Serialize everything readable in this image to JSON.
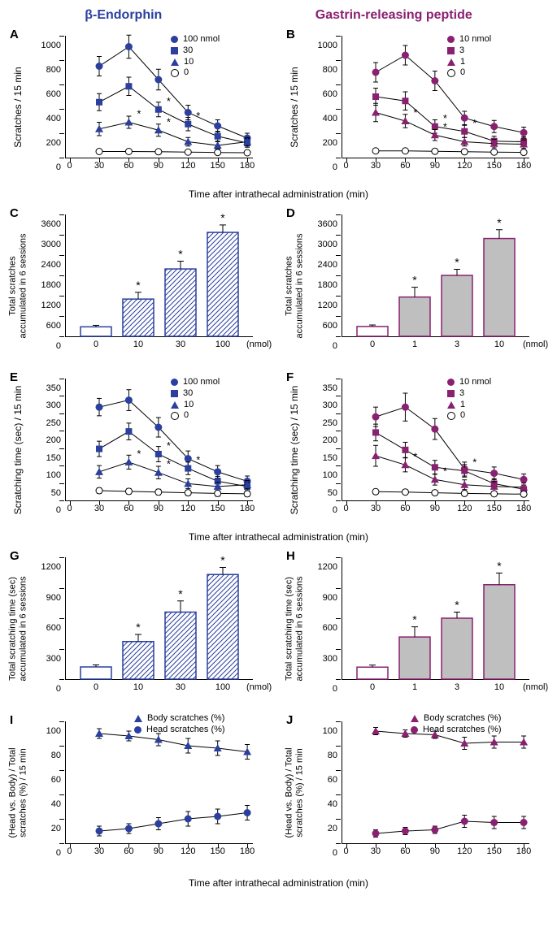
{
  "colors": {
    "blue": "#2a3f9e",
    "purple": "#8a2070",
    "gray_fill": "#bfbfbf",
    "black": "#000000",
    "white": "#ffffff"
  },
  "headers": {
    "left": "β-Endorphin",
    "right": "Gastrin-releasing peptide"
  },
  "shared_xlabel": "Time after intrathecal administration (min)",
  "time_ticks": [
    0,
    30,
    60,
    90,
    120,
    150,
    180
  ],
  "panelA": {
    "label": "A",
    "ylabel": "Scratches / 15 min",
    "ylim": [
      0,
      1000
    ],
    "ytick_step": 200,
    "color": "#2a3f9e",
    "legend": [
      {
        "marker": "circle",
        "label": "100 nmol"
      },
      {
        "marker": "square",
        "label": "30"
      },
      {
        "marker": "triangle",
        "label": "10"
      },
      {
        "marker": "open",
        "label": "0"
      }
    ],
    "series": [
      {
        "marker": "circle",
        "y": [
          750,
          910,
          640,
          370,
          260,
          160
        ],
        "err": [
          80,
          95,
          85,
          60,
          50,
          40
        ]
      },
      {
        "marker": "square",
        "y": [
          455,
          585,
          395,
          275,
          175,
          120
        ],
        "err": [
          70,
          75,
          60,
          55,
          40,
          35
        ],
        "stars": [
          0,
          0,
          1,
          1,
          0,
          0
        ]
      },
      {
        "marker": "triangle",
        "y": [
          235,
          290,
          225,
          130,
          100,
          130
        ],
        "err": [
          55,
          50,
          50,
          35,
          30,
          35
        ],
        "stars": [
          0,
          1,
          1,
          0,
          0,
          0
        ]
      },
      {
        "marker": "open",
        "y": [
          50,
          50,
          48,
          45,
          42,
          40
        ],
        "err": [
          15,
          15,
          15,
          14,
          14,
          14
        ]
      }
    ]
  },
  "panelB": {
    "label": "B",
    "ylabel": "Scratches / 15 min",
    "ylim": [
      0,
      1000
    ],
    "ytick_step": 200,
    "color": "#8a2070",
    "legend": [
      {
        "marker": "circle",
        "label": "10 nmol"
      },
      {
        "marker": "square",
        "label": "3"
      },
      {
        "marker": "triangle",
        "label": "1"
      },
      {
        "marker": "open",
        "label": "0"
      }
    ],
    "series": [
      {
        "marker": "circle",
        "y": [
          700,
          840,
          630,
          325,
          255,
          205
        ],
        "err": [
          80,
          80,
          80,
          55,
          50,
          45
        ]
      },
      {
        "marker": "square",
        "y": [
          500,
          465,
          255,
          215,
          135,
          130
        ],
        "err": [
          70,
          75,
          55,
          50,
          40,
          40
        ],
        "stars": [
          0,
          0,
          1,
          1,
          0,
          0
        ]
      },
      {
        "marker": "triangle",
        "y": [
          370,
          300,
          185,
          130,
          115,
          110
        ],
        "err": [
          75,
          55,
          45,
          35,
          35,
          35
        ],
        "stars": [
          0,
          1,
          1,
          0,
          0,
          0
        ]
      },
      {
        "marker": "open",
        "y": [
          55,
          55,
          52,
          48,
          45,
          43
        ],
        "err": [
          15,
          15,
          15,
          14,
          14,
          14
        ]
      }
    ]
  },
  "panelC": {
    "label": "C",
    "ylabel": "Total scratches\naccumulated in 6 sessions",
    "ylim": [
      0,
      3600
    ],
    "ytick_step": 600,
    "categories": [
      "0",
      "10",
      "30",
      "100"
    ],
    "unit": "(nmol)",
    "values": [
      280,
      1100,
      1990,
      3070
    ],
    "err": [
      45,
      200,
      230,
      220
    ],
    "stars": [
      0,
      1,
      1,
      1
    ],
    "stroke": "#2a3f9e",
    "pattern": "hatch"
  },
  "panelD": {
    "label": "D",
    "ylabel": "Total scratches\naccumulated in 6 sessions",
    "ylim": [
      0,
      3600
    ],
    "ytick_step": 600,
    "categories": [
      "0",
      "1",
      "3",
      "10"
    ],
    "unit": "(nmol)",
    "values": [
      290,
      1160,
      1800,
      2890
    ],
    "err": [
      45,
      290,
      180,
      260
    ],
    "stars": [
      0,
      1,
      1,
      1
    ],
    "stroke": "#8a2070",
    "pattern": "solid"
  },
  "panelE": {
    "label": "E",
    "ylabel": "Scratching time (sec) / 15 min",
    "ylim": [
      0,
      350
    ],
    "ytick_step": 50,
    "color": "#2a3f9e",
    "legend": [
      {
        "marker": "circle",
        "label": "100 nmol"
      },
      {
        "marker": "square",
        "label": "30"
      },
      {
        "marker": "triangle",
        "label": "10"
      },
      {
        "marker": "open",
        "label": "0"
      }
    ],
    "series": [
      {
        "marker": "circle",
        "y": [
          268,
          288,
          210,
          120,
          82,
          55
        ],
        "err": [
          25,
          30,
          28,
          22,
          18,
          15
        ]
      },
      {
        "marker": "square",
        "y": [
          148,
          198,
          133,
          92,
          55,
          40
        ],
        "err": [
          22,
          24,
          22,
          18,
          14,
          12
        ],
        "stars": [
          0,
          0,
          1,
          1,
          0,
          0
        ]
      },
      {
        "marker": "triangle",
        "y": [
          82,
          110,
          80,
          48,
          40,
          45
        ],
        "err": [
          18,
          20,
          18,
          14,
          12,
          12
        ],
        "stars": [
          0,
          1,
          1,
          0,
          0,
          0
        ]
      },
      {
        "marker": "open",
        "y": [
          28,
          26,
          24,
          22,
          20,
          19
        ],
        "err": [
          8,
          8,
          8,
          8,
          8,
          8
        ]
      }
    ]
  },
  "panelF": {
    "label": "F",
    "ylabel": "Scratching time (sec) / 15 min",
    "ylim": [
      0,
      350
    ],
    "ytick_step": 50,
    "color": "#8a2070",
    "legend": [
      {
        "marker": "circle",
        "label": "10 nmol"
      },
      {
        "marker": "square",
        "label": "3"
      },
      {
        "marker": "triangle",
        "label": "1"
      },
      {
        "marker": "open",
        "label": "0"
      }
    ],
    "series": [
      {
        "marker": "circle",
        "y": [
          240,
          268,
          205,
          90,
          78,
          60
        ],
        "err": [
          28,
          40,
          30,
          20,
          18,
          16
        ]
      },
      {
        "marker": "square",
        "y": [
          195,
          145,
          95,
          85,
          48,
          32
        ],
        "err": [
          24,
          22,
          20,
          18,
          14,
          12
        ],
        "stars": [
          0,
          0,
          0,
          1,
          0,
          0
        ]
      },
      {
        "marker": "triangle",
        "y": [
          128,
          102,
          60,
          45,
          40,
          38
        ],
        "err": [
          30,
          20,
          16,
          14,
          14,
          12
        ],
        "stars": [
          0,
          1,
          1,
          0,
          0,
          0
        ]
      },
      {
        "marker": "open",
        "y": [
          25,
          24,
          22,
          20,
          19,
          18
        ],
        "err": [
          7,
          7,
          7,
          7,
          7,
          7
        ]
      }
    ]
  },
  "panelG": {
    "label": "G",
    "ylabel": "Total scratching time (sec)\naccumulated in 6 sessions",
    "ylim": [
      0,
      1200
    ],
    "ytick_step": 300,
    "categories": [
      "0",
      "10",
      "30",
      "100"
    ],
    "unit": "(nmol)",
    "values": [
      120,
      370,
      660,
      1030
    ],
    "err": [
      20,
      70,
      110,
      70
    ],
    "stars": [
      0,
      1,
      1,
      1
    ],
    "stroke": "#2a3f9e",
    "pattern": "hatch"
  },
  "panelH": {
    "label": "H",
    "ylabel": "Total scratching time (sec)\naccumulated in 6 sessions",
    "ylim": [
      0,
      1200
    ],
    "ytick_step": 300,
    "categories": [
      "0",
      "1",
      "3",
      "10"
    ],
    "unit": "(nmol)",
    "values": [
      118,
      415,
      600,
      930
    ],
    "err": [
      20,
      100,
      60,
      115
    ],
    "stars": [
      0,
      1,
      1,
      1
    ],
    "stroke": "#8a2070",
    "pattern": "solid"
  },
  "panelI": {
    "label": "I",
    "ylabel": "(Head vs. Body) / Total\nscratches (%) / 15 min",
    "ylim": [
      0,
      100
    ],
    "ytick_step": 20,
    "color": "#2a3f9e",
    "legend": [
      {
        "marker": "triangle",
        "label": "Body scratches (%)"
      },
      {
        "marker": "circle",
        "label": "Head scratches (%)"
      }
    ],
    "series": [
      {
        "marker": "triangle",
        "y": [
          90,
          88,
          85,
          80,
          78,
          75
        ],
        "err": [
          4,
          4,
          5,
          6,
          6,
          6
        ]
      },
      {
        "marker": "circle",
        "y": [
          10,
          12,
          16,
          20,
          22,
          25
        ],
        "err": [
          4,
          4,
          5,
          6,
          6,
          6
        ]
      }
    ]
  },
  "panelJ": {
    "label": "J",
    "ylabel": "(Head vs. Body) / Total\nscratches (%) / 15 min",
    "ylim": [
      0,
      100
    ],
    "ytick_step": 20,
    "color": "#8a2070",
    "legend": [
      {
        "marker": "triangle",
        "label": "Body scratches (%)"
      },
      {
        "marker": "circle",
        "label": "Head scratches (%)"
      }
    ],
    "series": [
      {
        "marker": "triangle",
        "y": [
          92,
          90,
          89,
          82,
          83,
          83
        ],
        "err": [
          3,
          3,
          3,
          5,
          5,
          5
        ]
      },
      {
        "marker": "circle",
        "y": [
          8,
          10,
          11,
          18,
          17,
          17
        ],
        "err": [
          3,
          3,
          3,
          5,
          5,
          5
        ]
      }
    ]
  }
}
